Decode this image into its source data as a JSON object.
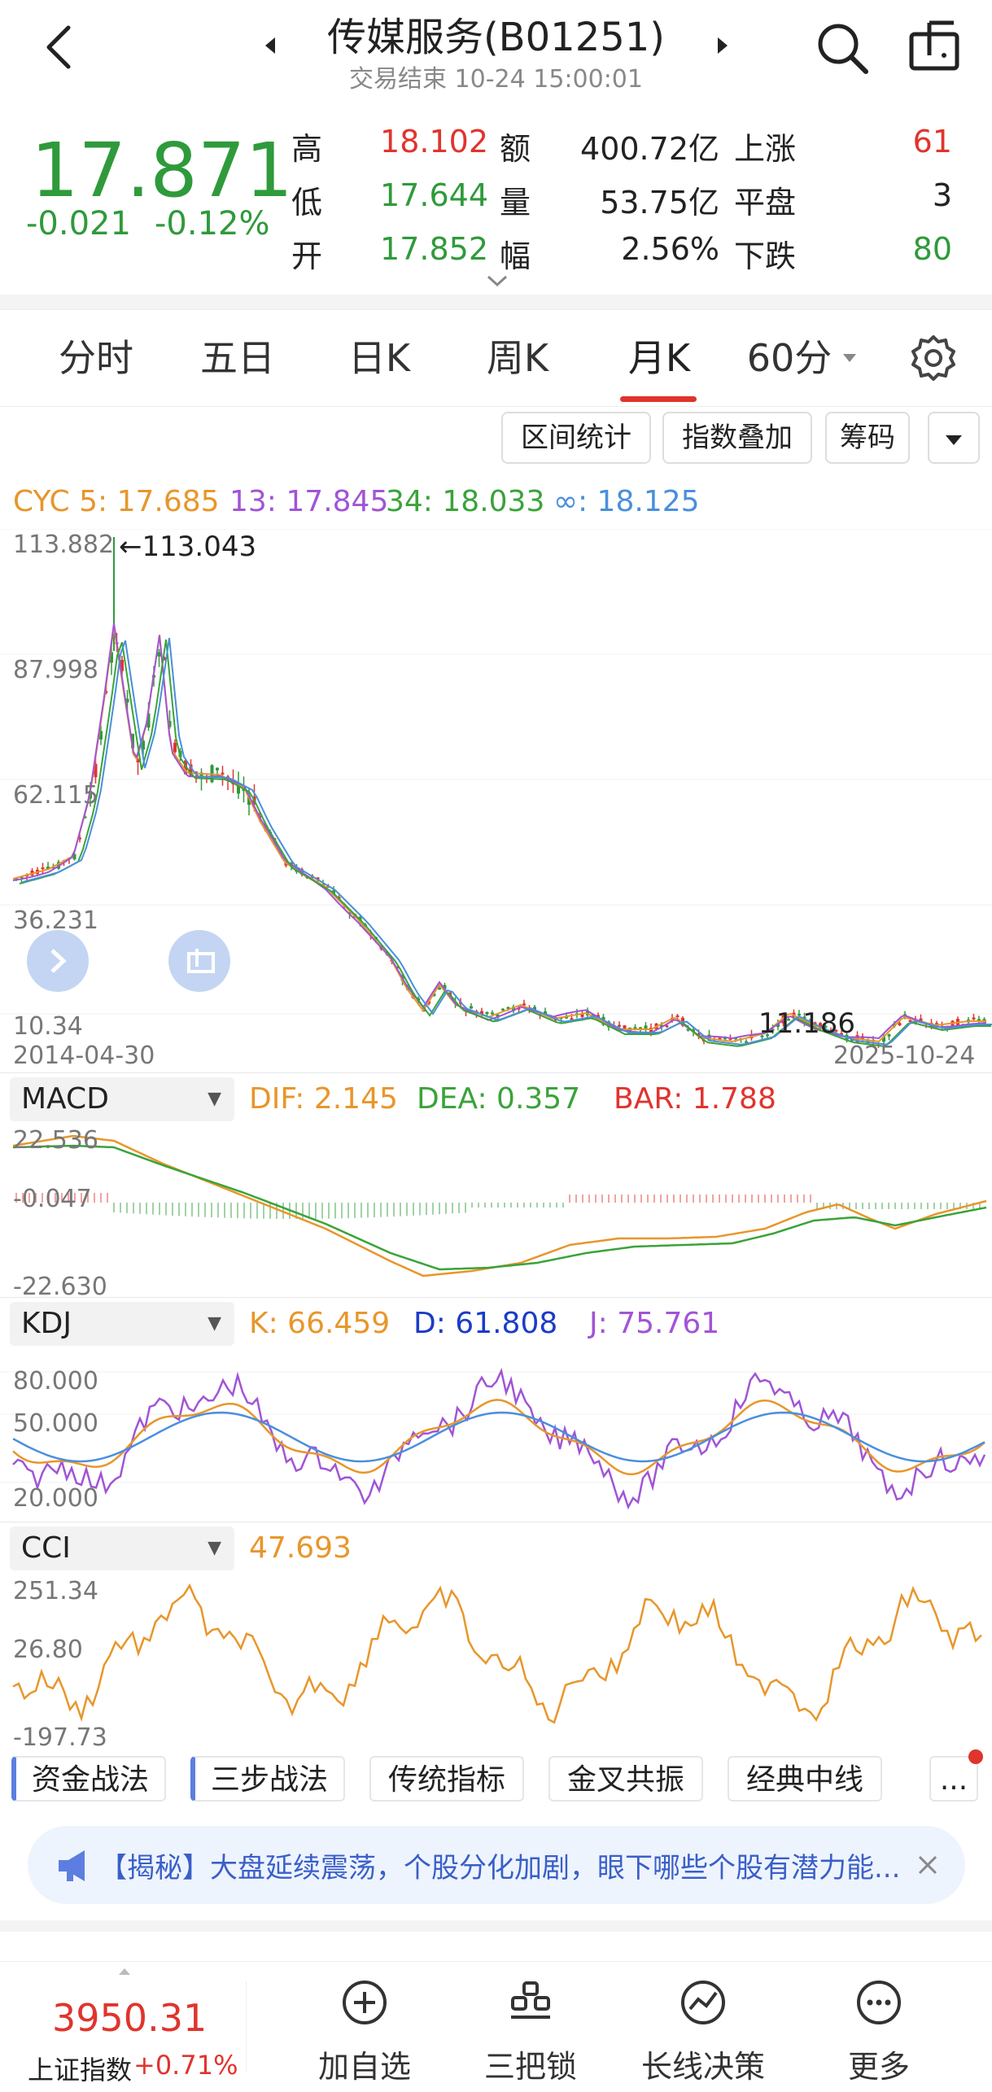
{
  "header": {
    "title": "传媒服务(B01251)",
    "subtitle": "交易结束 10-24 15:00:01",
    "icons": [
      "back-chevron-icon",
      "prev-arrow-icon",
      "next-arrow-icon",
      "search-icon",
      "share-icon"
    ]
  },
  "quote": {
    "price": "17.871",
    "change": "-0.021",
    "change_pct": "-0.12%",
    "rows": [
      {
        "l1": "高",
        "v1": "18.102",
        "l2": "额",
        "v2": "400.72亿",
        "l3": "上涨",
        "v3": "61"
      },
      {
        "l1": "低",
        "v1": "17.644",
        "l2": "量",
        "v2": "53.75亿",
        "l3": "平盘",
        "v3": "3"
      },
      {
        "l1": "开",
        "v1": "17.852",
        "l2": "幅",
        "v2": "2.56%",
        "l3": "下跌",
        "v3": "80"
      }
    ]
  },
  "tabs": [
    "分时",
    "五日",
    "日K",
    "周K",
    "月K",
    "60分"
  ],
  "active_tab": "月K",
  "tools": [
    "区间统计",
    "指数叠加",
    "筹码"
  ],
  "main_chart": {
    "legend": {
      "cyc5": "CYC 5: 17.685",
      "cyc13": "13: 17.845",
      "cyc34": "34: 18.033",
      "cycinf": "∞: 18.125"
    },
    "y_ticks": [
      "113.882",
      "87.998",
      "62.115",
      "36.231",
      "10.34"
    ],
    "max_label": "113.043",
    "min_label": "11.186",
    "x_start": "2014-04-30",
    "x_end": "2025-10-24"
  },
  "macd": {
    "selector": "MACD",
    "dif": "DIF: 2.145",
    "dea": "DEA: 0.357",
    "bar": "BAR: 1.788",
    "y_ticks": [
      "22.536",
      "-0.047",
      "-22.630"
    ]
  },
  "kdj": {
    "selector": "KDJ",
    "k": "K: 66.459",
    "d": "D: 61.808",
    "j": "J: 75.761",
    "y_ticks": [
      "80.000",
      "50.000",
      "20.000"
    ]
  },
  "cci": {
    "selector": "CCI",
    "value": "47.693",
    "y_ticks": [
      "251.34",
      "26.80",
      "-197.73"
    ]
  },
  "strategies": [
    "资金战法",
    "三步战法",
    "传统指标",
    "金叉共振",
    "经典中线",
    "..."
  ],
  "banner": {
    "text": "【揭秘】大盘延续震荡，个股分化加剧，眼下哪些个股有潜力能..."
  },
  "bottom": {
    "index_value": "3950.31",
    "index_name": "上证指数",
    "index_change": "+0.71%",
    "nav": [
      "加自选",
      "三把锁",
      "长线决策",
      "更多"
    ]
  },
  "colors": {
    "up": "#e0342e",
    "down": "#2f9a3b",
    "ma5": "#e8962a",
    "ma13": "#a154d6",
    "ma34": "#3aa33a",
    "mainf": "#4a8fdc"
  }
}
